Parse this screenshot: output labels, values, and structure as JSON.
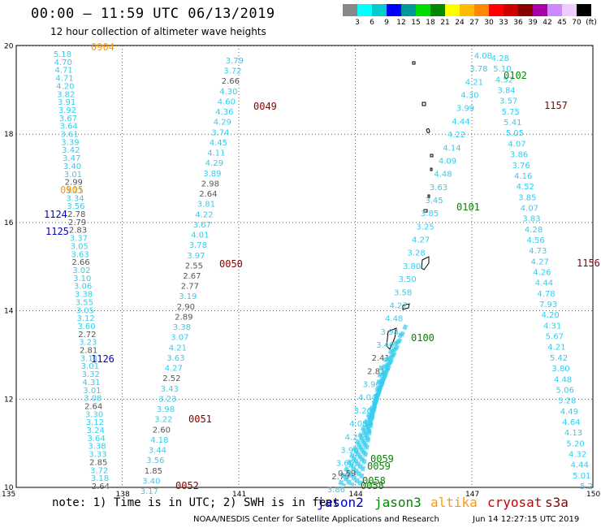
{
  "title": "00:00 – 11:59 UTC 06/13/2019",
  "subtitle": "12 hour collection of altimeter wave heights",
  "legend": {
    "colors": [
      "#888888",
      "#00ffff",
      "#00cccc",
      "#0000ff",
      "#009999",
      "#00dd00",
      "#008800",
      "#ffff00",
      "#ffbb00",
      "#ff8800",
      "#ff0000",
      "#cc0000",
      "#880000",
      "#aa00aa",
      "#cc88ff",
      "#eeccff",
      "#000000"
    ],
    "labels": [
      "3",
      "6",
      "9",
      "12",
      "15",
      "18",
      "21",
      "24",
      "27",
      "30",
      "33",
      "36",
      "39",
      "42",
      "45",
      "70",
      "(ft)"
    ]
  },
  "axes": {
    "x_ticks": [
      "135",
      "138",
      "141",
      "144",
      "147",
      "150"
    ],
    "y_ticks": [
      "10",
      "12",
      "14",
      "16",
      "18",
      "20"
    ]
  },
  "tracks": [
    {
      "id": "t1",
      "points": [
        {
          "v": "5.18",
          "c": "cyan"
        },
        {
          "v": "4.70",
          "c": "cyan"
        },
        {
          "v": "4.71",
          "c": "cyan"
        },
        {
          "v": "4.71",
          "c": "cyan"
        },
        {
          "v": "4.20",
          "c": "cyan"
        },
        {
          "v": "3.82",
          "c": "cyan"
        },
        {
          "v": "3.91",
          "c": "cyan"
        },
        {
          "v": "3.92",
          "c": "cyan"
        },
        {
          "v": "3.67",
          "c": "cyan"
        },
        {
          "v": "3.64",
          "c": "cyan"
        },
        {
          "v": "3.61",
          "c": "cyan"
        },
        {
          "v": "3.39",
          "c": "cyan"
        },
        {
          "v": "3.42",
          "c": "cyan"
        },
        {
          "v": "3.47",
          "c": "cyan"
        },
        {
          "v": "3.40",
          "c": "cyan"
        },
        {
          "v": "3.01",
          "c": "cyan"
        },
        {
          "v": "2.99",
          "c": "gray"
        },
        {
          "v": "3.21",
          "c": "cyan"
        },
        {
          "v": "3.34",
          "c": "cyan"
        },
        {
          "v": "3.56",
          "c": "cyan"
        },
        {
          "v": "2.78",
          "c": "gray"
        },
        {
          "v": "2.79",
          "c": "gray"
        },
        {
          "v": "2.83",
          "c": "gray"
        },
        {
          "v": "3.37",
          "c": "cyan"
        },
        {
          "v": "3.05",
          "c": "cyan"
        },
        {
          "v": "3.63",
          "c": "cyan"
        },
        {
          "v": "2.66",
          "c": "gray"
        },
        {
          "v": "3.02",
          "c": "cyan"
        },
        {
          "v": "3.10",
          "c": "cyan"
        },
        {
          "v": "3.06",
          "c": "cyan"
        },
        {
          "v": "3.38",
          "c": "cyan"
        },
        {
          "v": "3.55",
          "c": "cyan"
        },
        {
          "v": "3.05",
          "c": "cyan"
        },
        {
          "v": "3.12",
          "c": "cyan"
        },
        {
          "v": "3.60",
          "c": "cyan"
        },
        {
          "v": "2.72",
          "c": "gray"
        },
        {
          "v": "3.23",
          "c": "cyan"
        },
        {
          "v": "2.81",
          "c": "gray"
        },
        {
          "v": "3.11",
          "c": "cyan"
        },
        {
          "v": "3.01",
          "c": "cyan"
        },
        {
          "v": "3.32",
          "c": "cyan"
        },
        {
          "v": "4.31",
          "c": "cyan"
        },
        {
          "v": "3.01",
          "c": "cyan"
        },
        {
          "v": "3.08",
          "c": "cyan"
        },
        {
          "v": "2.64",
          "c": "gray"
        },
        {
          "v": "3.30",
          "c": "cyan"
        },
        {
          "v": "3.12",
          "c": "cyan"
        },
        {
          "v": "3.24",
          "c": "cyan"
        },
        {
          "v": "3.64",
          "c": "cyan"
        },
        {
          "v": "3.38",
          "c": "cyan"
        },
        {
          "v": "3.33",
          "c": "cyan"
        },
        {
          "v": "2.85",
          "c": "gray"
        },
        {
          "v": "3.72",
          "c": "cyan"
        },
        {
          "v": "3.18",
          "c": "cyan"
        },
        {
          "v": "2.64",
          "c": "gray"
        }
      ]
    },
    {
      "id": "t2",
      "points": [
        {
          "v": "3.79",
          "c": "cyan"
        },
        {
          "v": "3.72",
          "c": "cyan"
        },
        {
          "v": "2.66",
          "c": "gray"
        },
        {
          "v": "4.30",
          "c": "cyan"
        },
        {
          "v": "4.60",
          "c": "cyan"
        },
        {
          "v": "4.36",
          "c": "cyan"
        },
        {
          "v": "4.29",
          "c": "cyan"
        },
        {
          "v": "3.74",
          "c": "cyan"
        },
        {
          "v": "4.45",
          "c": "cyan"
        },
        {
          "v": "4.11",
          "c": "cyan"
        },
        {
          "v": "4.29",
          "c": "cyan"
        },
        {
          "v": "3.89",
          "c": "cyan"
        },
        {
          "v": "2.98",
          "c": "gray"
        },
        {
          "v": "2.64",
          "c": "gray"
        },
        {
          "v": "3.81",
          "c": "cyan"
        },
        {
          "v": "4.22",
          "c": "cyan"
        },
        {
          "v": "3.67",
          "c": "cyan"
        },
        {
          "v": "4.01",
          "c": "cyan"
        },
        {
          "v": "3.78",
          "c": "cyan"
        },
        {
          "v": "3.97",
          "c": "cyan"
        },
        {
          "v": "2.55",
          "c": "gray"
        },
        {
          "v": "2.67",
          "c": "gray"
        },
        {
          "v": "2.77",
          "c": "gray"
        },
        {
          "v": "3.19",
          "c": "cyan"
        },
        {
          "v": "2.90",
          "c": "gray"
        },
        {
          "v": "2.89",
          "c": "gray"
        },
        {
          "v": "3.38",
          "c": "cyan"
        },
        {
          "v": "3.07",
          "c": "cyan"
        },
        {
          "v": "4.21",
          "c": "cyan"
        },
        {
          "v": "3.63",
          "c": "cyan"
        },
        {
          "v": "4.27",
          "c": "cyan"
        },
        {
          "v": "2.52",
          "c": "gray"
        },
        {
          "v": "3.43",
          "c": "cyan"
        },
        {
          "v": "3.23",
          "c": "cyan"
        },
        {
          "v": "3.98",
          "c": "cyan"
        },
        {
          "v": "3.22",
          "c": "cyan"
        },
        {
          "v": "2.60",
          "c": "gray"
        },
        {
          "v": "4.18",
          "c": "cyan"
        },
        {
          "v": "3.44",
          "c": "cyan"
        },
        {
          "v": "3.56",
          "c": "cyan"
        },
        {
          "v": "1.85",
          "c": "gray"
        },
        {
          "v": "3.40",
          "c": "cyan"
        },
        {
          "v": "3.17",
          "c": "cyan"
        }
      ]
    },
    {
      "id": "t3",
      "points": [
        {
          "v": "4.08",
          "c": "cyan"
        },
        {
          "v": "3.78",
          "c": "cyan"
        },
        {
          "v": "4.21",
          "c": "cyan"
        },
        {
          "v": "4.30",
          "c": "cyan"
        },
        {
          "v": "3.99",
          "c": "cyan"
        },
        {
          "v": "4.44",
          "c": "cyan"
        },
        {
          "v": "4.22",
          "c": "cyan"
        },
        {
          "v": "4.14",
          "c": "cyan"
        },
        {
          "v": "4.09",
          "c": "cyan"
        },
        {
          "v": "4.48",
          "c": "cyan"
        },
        {
          "v": "3.63",
          "c": "cyan"
        },
        {
          "v": "3.45",
          "c": "cyan"
        },
        {
          "v": "3.85",
          "c": "cyan"
        },
        {
          "v": "3.25",
          "c": "cyan"
        },
        {
          "v": "4.27",
          "c": "cyan"
        },
        {
          "v": "3.28",
          "c": "cyan"
        },
        {
          "v": "3.80",
          "c": "cyan"
        },
        {
          "v": "3.50",
          "c": "cyan"
        },
        {
          "v": "3.58",
          "c": "cyan"
        },
        {
          "v": "4.27",
          "c": "cyan"
        },
        {
          "v": "4.48",
          "c": "cyan"
        },
        {
          "v": "3.98",
          "c": "cyan"
        },
        {
          "v": "3.46",
          "c": "cyan"
        },
        {
          "v": "2.41",
          "c": "gray"
        },
        {
          "v": "2.81",
          "c": "gray"
        },
        {
          "v": "3.90",
          "c": "cyan"
        },
        {
          "v": "4.04",
          "c": "cyan"
        },
        {
          "v": "3.26",
          "c": "cyan"
        },
        {
          "v": "4.08",
          "c": "cyan"
        },
        {
          "v": "4.27",
          "c": "cyan"
        },
        {
          "v": "3.90",
          "c": "cyan"
        },
        {
          "v": "3.60",
          "c": "cyan"
        },
        {
          "v": "2.79",
          "c": "gray"
        },
        {
          "v": "3.86",
          "c": "cyan"
        }
      ]
    },
    {
      "id": "t4",
      "points": [
        {
          "v": "4.28",
          "c": "cyan"
        },
        {
          "v": "5.10",
          "c": "cyan"
        },
        {
          "v": "4.52",
          "c": "cyan"
        },
        {
          "v": "3.84",
          "c": "cyan"
        },
        {
          "v": "3.57",
          "c": "cyan"
        },
        {
          "v": "5.75",
          "c": "cyan"
        },
        {
          "v": "5.41",
          "c": "cyan"
        },
        {
          "v": "5.05",
          "c": "cyan"
        },
        {
          "v": "4.07",
          "c": "cyan"
        },
        {
          "v": "3.86",
          "c": "cyan"
        },
        {
          "v": "3.76",
          "c": "cyan"
        },
        {
          "v": "4.16",
          "c": "cyan"
        },
        {
          "v": "4.52",
          "c": "cyan"
        },
        {
          "v": "3.85",
          "c": "cyan"
        },
        {
          "v": "4.07",
          "c": "cyan"
        },
        {
          "v": "3.83",
          "c": "cyan"
        },
        {
          "v": "4.28",
          "c": "cyan"
        },
        {
          "v": "4.56",
          "c": "cyan"
        },
        {
          "v": "4.73",
          "c": "cyan"
        },
        {
          "v": "4.27",
          "c": "cyan"
        },
        {
          "v": "4.26",
          "c": "cyan"
        },
        {
          "v": "4.44",
          "c": "cyan"
        },
        {
          "v": "4.78",
          "c": "cyan"
        },
        {
          "v": "7.93",
          "c": "cyan"
        },
        {
          "v": "4.20",
          "c": "cyan"
        },
        {
          "v": "4.31",
          "c": "cyan"
        },
        {
          "v": "5.67",
          "c": "cyan"
        },
        {
          "v": "4.21",
          "c": "cyan"
        },
        {
          "v": "5.42",
          "c": "cyan"
        },
        {
          "v": "3.80",
          "c": "cyan"
        },
        {
          "v": "4.48",
          "c": "cyan"
        },
        {
          "v": "5.06",
          "c": "cyan"
        },
        {
          "v": "5.28",
          "c": "cyan"
        },
        {
          "v": "4.49",
          "c": "cyan"
        },
        {
          "v": "4.64",
          "c": "cyan"
        },
        {
          "v": "4.13",
          "c": "cyan"
        },
        {
          "v": "5.20",
          "c": "cyan"
        },
        {
          "v": "4.32",
          "c": "cyan"
        },
        {
          "v": "4.44",
          "c": "cyan"
        },
        {
          "v": "5.01",
          "c": "cyan"
        },
        {
          "v": "5.2",
          "c": "cyan"
        }
      ]
    }
  ],
  "time_labels": [
    {
      "t": "0904",
      "color": "#ff9900"
    },
    {
      "t": "0905",
      "color": "#ff9900"
    },
    {
      "t": "1124",
      "color": "#0000dd"
    },
    {
      "t": "1125",
      "color": "#0000dd"
    },
    {
      "t": "1126",
      "color": "#0000dd"
    },
    {
      "t": "0049",
      "color": "#880000"
    },
    {
      "t": "0050",
      "color": "#880000"
    },
    {
      "t": "0051",
      "color": "#880000"
    },
    {
      "t": "0052",
      "color": "#880000"
    },
    {
      "t": "0102",
      "color": "#008800"
    },
    {
      "t": "0101",
      "color": "#008800"
    },
    {
      "t": "0100",
      "color": "#008800"
    },
    {
      "t": "0059",
      "color": "#008800"
    },
    {
      "t": "0059",
      "color": "#008800"
    },
    {
      "t": "0058",
      "color": "#008800"
    },
    {
      "t": "0058",
      "color": "#008800"
    },
    {
      "t": "1157",
      "color": "#880000"
    },
    {
      "t": "1156",
      "color": "#880000"
    }
  ],
  "bottom_values": [
    "0.59"
  ],
  "note": "note: 1) Time is in UTC; 2) SWH is in feet",
  "missions": [
    {
      "name": "jason2",
      "color": "#0000cc"
    },
    {
      "name": "jason3",
      "color": "#008800"
    },
    {
      "name": "altika",
      "color": "#ff9900"
    },
    {
      "name": "cryosat",
      "color": "#cc0000"
    },
    {
      "name": "s3a",
      "color": "#880000"
    }
  ],
  "credit": "NOAA/NESDIS Center for Satellite Applications and Research",
  "generated": "Jun 14 12:27:15 UTC 2019"
}
